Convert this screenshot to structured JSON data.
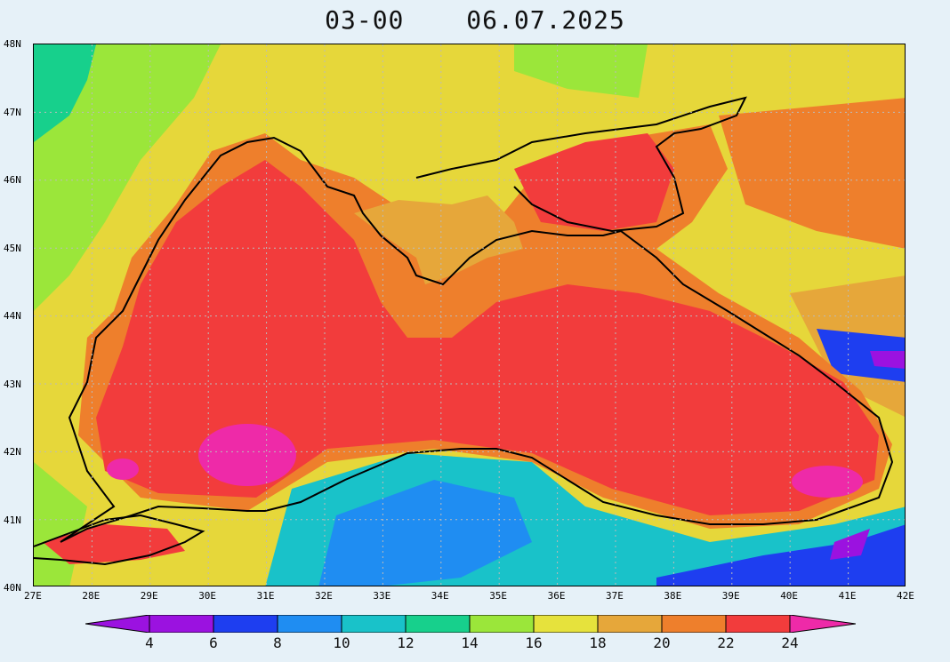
{
  "title": {
    "hour": "03-00",
    "date": "06.07.2025"
  },
  "lat_labels": [
    "48N",
    "47N",
    "46N",
    "45N",
    "44N",
    "43N",
    "42N",
    "41N",
    "40N"
  ],
  "lon_labels": [
    "27E",
    "28E",
    "29E",
    "30E",
    "31E",
    "32E",
    "33E",
    "34E",
    "35E",
    "36E",
    "37E",
    "38E",
    "39E",
    "40E",
    "41E",
    "42E"
  ],
  "legend": {
    "ticks": [
      "4",
      "6",
      "8",
      "10",
      "12",
      "14",
      "16",
      "18",
      "20",
      "22",
      "24"
    ],
    "colors": [
      "#9b12e0",
      "#1e3ef0",
      "#1f8df2",
      "#19c2c9",
      "#17d08c",
      "#9be63a",
      "#e6e23c",
      "#e6a73a",
      "#ee7f2c",
      "#f23c3c",
      "#ee2aa8"
    ]
  }
}
